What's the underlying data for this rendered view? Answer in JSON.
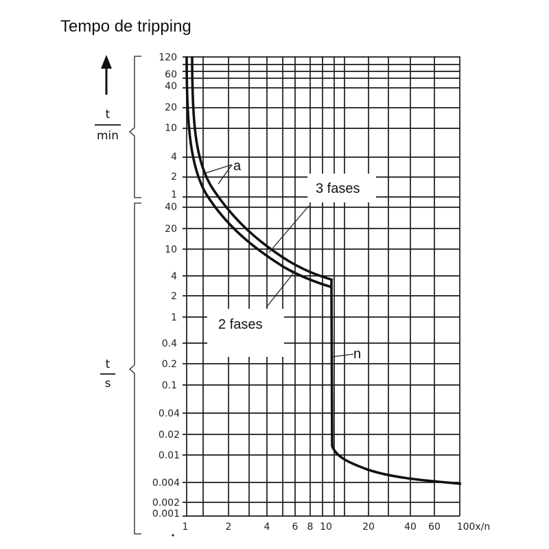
{
  "chart_data": {
    "type": "line",
    "title": "Tempo de tripping",
    "x_scale": "log",
    "x_ticks": [
      "1",
      "2",
      "4",
      "6",
      "8",
      "10",
      "20",
      "40",
      "60",
      "100x/n"
    ],
    "y_axis_min_label": "t/min",
    "y_axis_sec_label": "t/s",
    "y_ticks_min": [
      "120",
      "60",
      "40",
      "20",
      "10",
      "4",
      "2",
      "1"
    ],
    "y_ticks_sec": [
      "40",
      "20",
      "10",
      "4",
      "2",
      "1",
      "0.4",
      "0.2",
      "0.1",
      "0.04",
      "0.02",
      "0.01",
      "0.004",
      "0.002",
      "0.001"
    ],
    "series": [
      {
        "name": "3 fases",
        "x": [
          1.25,
          1.3,
          1.4,
          1.6,
          2,
          3,
          4,
          6,
          8,
          10.5
        ],
        "y_seconds": [
          7200,
          2400,
          900,
          300,
          100,
          30,
          15,
          7,
          5,
          3.5
        ]
      },
      {
        "name": "2 fases",
        "x": [
          1.15,
          1.2,
          1.3,
          1.5,
          1.9,
          2.8,
          4,
          6,
          8,
          10.5
        ],
        "y_seconds": [
          7200,
          2400,
          900,
          300,
          100,
          30,
          12,
          5,
          3.6,
          2.6
        ]
      },
      {
        "name": "n",
        "x": [
          10.5,
          10.5,
          12,
          20,
          40,
          60,
          100
        ],
        "y_seconds": [
          3,
          0.013,
          0.008,
          0.0055,
          0.0043,
          0.0041,
          0.0038
        ]
      }
    ],
    "annotations": [
      "a",
      "n",
      "3 fases",
      "2 fases"
    ],
    "grid": true
  }
}
